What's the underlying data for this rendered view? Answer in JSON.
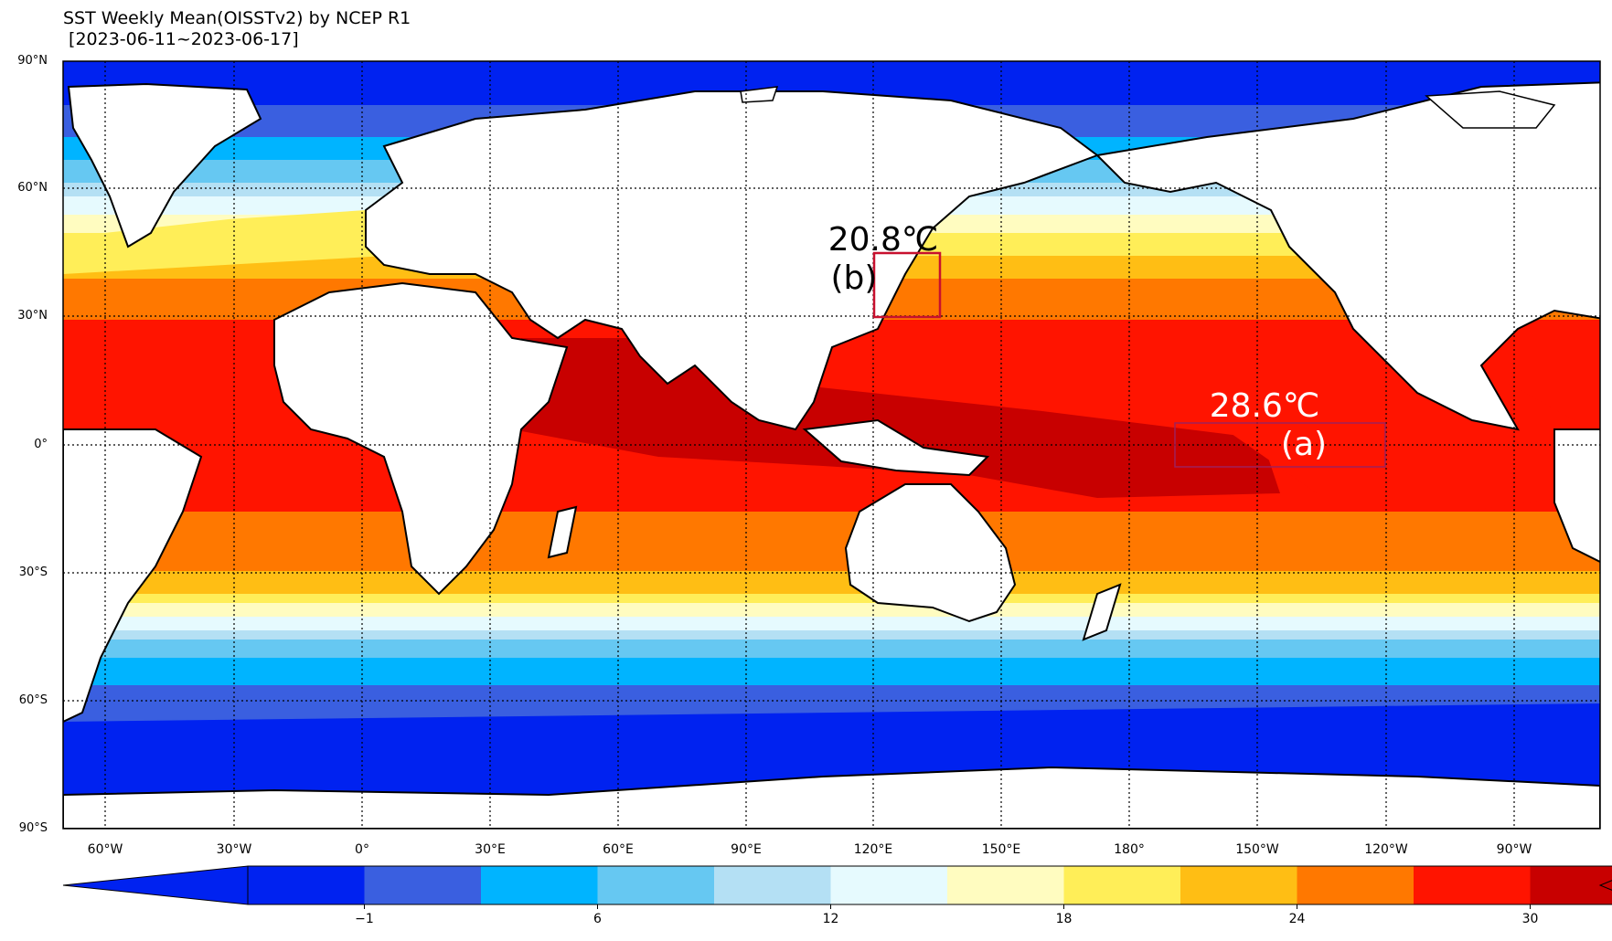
{
  "title": {
    "line1": "SST Weekly Mean(OISSTv2) by NCEP R1",
    "line2": " [2023-06-11~2023-06-17]"
  },
  "map": {
    "lat_labels": [
      "90°N",
      "60°N",
      "30°N",
      "0°",
      "30°S",
      "60°S",
      "90°S"
    ],
    "lon_labels": [
      "60°W",
      "30°W",
      "0°",
      "30°E",
      "60°E",
      "90°E",
      "120°E",
      "150°E",
      "180°",
      "150°W",
      "120°W",
      "90°W"
    ],
    "land_color": "#ffffff",
    "gridlines": "dotted",
    "annotations": {
      "a": {
        "value": "28.6℃",
        "label": "(a)",
        "text_color": "#ffffff",
        "box_color": "#a0205a"
      },
      "b": {
        "value": "20.8℃",
        "label": "(b)",
        "text_color": "#000000",
        "box_color": "#c8102e"
      }
    }
  },
  "colorbar": {
    "colors": [
      "#0022f0",
      "#3a5fe0",
      "#00b4ff",
      "#66c8f2",
      "#b4e0f4",
      "#e6fafe",
      "#fffcc0",
      "#ffee58",
      "#ffbe14",
      "#ff7800",
      "#ff1400",
      "#c80000"
    ],
    "under_color": "#0022f0",
    "over_color": "#c80000",
    "tick_labels": [
      "−1",
      "6",
      "12",
      "18",
      "24",
      "30"
    ]
  }
}
